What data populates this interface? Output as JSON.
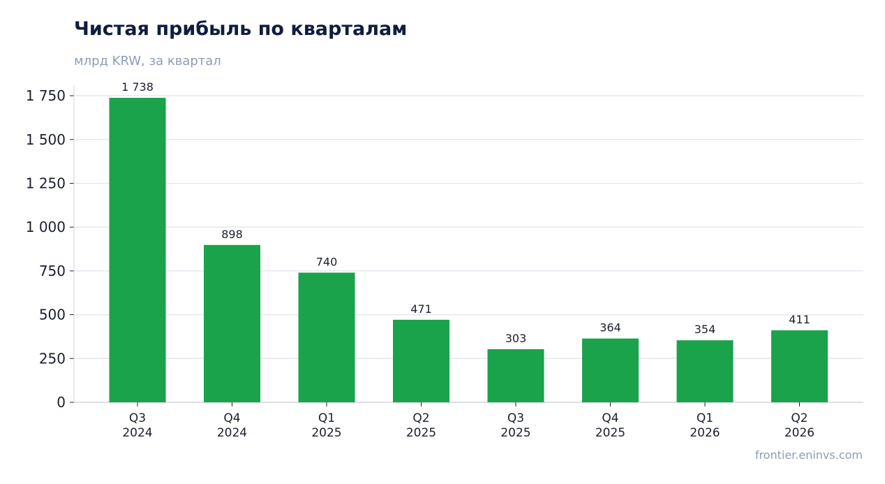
{
  "header": {
    "title": "Чистая прибыль по кварталам",
    "subtitle": "млрд KRW, за квартал"
  },
  "footer": {
    "source": "frontier.eninvs.com"
  },
  "chart_data": {
    "type": "bar",
    "categories": [
      [
        "Q3",
        "2024"
      ],
      [
        "Q4",
        "2024"
      ],
      [
        "Q1",
        "2025"
      ],
      [
        "Q2",
        "2025"
      ],
      [
        "Q3",
        "2025"
      ],
      [
        "Q4",
        "2025"
      ],
      [
        "Q1",
        "2026"
      ],
      [
        "Q2",
        "2026"
      ]
    ],
    "values": [
      1738,
      898,
      740,
      471,
      303,
      364,
      354,
      411
    ],
    "value_labels": [
      "1 738",
      "898",
      "740",
      "471",
      "303",
      "364",
      "354",
      "411"
    ],
    "y_ticks": [
      0,
      250,
      500,
      750,
      1000,
      1250,
      1500,
      1750
    ],
    "y_tick_labels": [
      "0",
      "250",
      "500",
      "750",
      "1 000",
      "1 250",
      "1 500",
      "1 750"
    ],
    "ylim": [
      0,
      1830
    ],
    "grid": true,
    "legend": "none",
    "colors": {
      "bar": "#1aa34a",
      "grid": "#e3e7ee",
      "axis": "#cfd5de",
      "tick_text": "#1a1f2e",
      "label_text": "#1a1f2e"
    }
  }
}
